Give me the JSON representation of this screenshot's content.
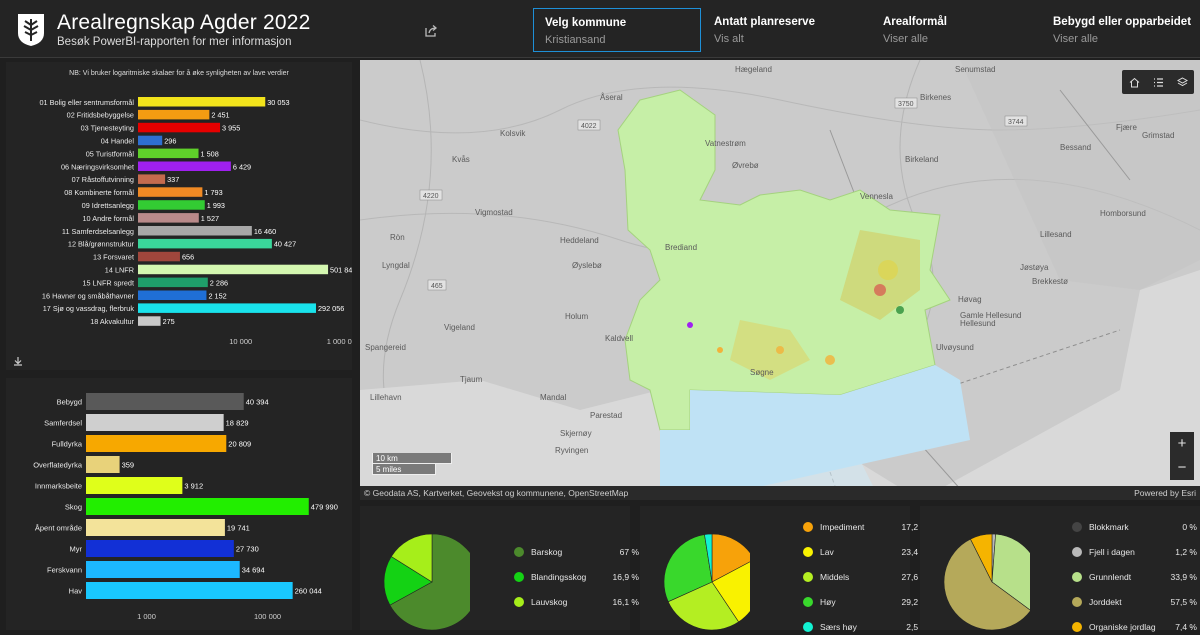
{
  "header": {
    "title": "Arealregnskap Agder 2022",
    "subtitle": "Besøk PowerBI-rapporten for mer informasjon",
    "filters": [
      {
        "label": "Velg kommune",
        "value": "Kristiansand"
      },
      {
        "label": "Antatt planreserve",
        "value": "Vis alt"
      },
      {
        "label": "Arealformål",
        "value": "Viser alle"
      },
      {
        "label": "Bebygd eller opparbeidet",
        "value": "Viser alle"
      }
    ]
  },
  "plan_chart": {
    "note": "NB: Vi bruker logaritmiske skalaer for å øke synligheten av lave verdier"
  },
  "chart_data": [
    {
      "type": "bar",
      "orientation": "horizontal",
      "scale": "log",
      "categories": [
        "01 Bolig eller sentrumsformål",
        "02 Fritidsbebyggelse",
        "03 Tjenesteyting",
        "04 Handel",
        "05 Turistformål",
        "06 Næringsvirksomhet",
        "07 Råstoffutvinning",
        "08 Kombinerte formål",
        "09 Idrettsanlegg",
        "10 Andre formål",
        "11 Samferdselsanlegg",
        "12 Blå/grønnstruktur",
        "13 Forsvaret",
        "14 LNFR",
        "15 LNFR spredt",
        "16 Havner og småbåthavner",
        "17 Sjø og vassdrag, flerbruk",
        "18 Akvakultur"
      ],
      "values": [
        30053,
        2451,
        3955,
        296,
        1508,
        6429,
        337,
        1793,
        1993,
        1527,
        16460,
        40427,
        656,
        501846,
        2286,
        2152,
        292056,
        275
      ],
      "value_labels": [
        "30 053",
        "2 451",
        "3 955",
        "296",
        "1 508",
        "6 429",
        "337",
        "1 793",
        "1 993",
        "1 527",
        "16 460",
        "40 427",
        "656",
        "501 846",
        "2 286",
        "2 152",
        "292 056",
        "275"
      ],
      "colors": [
        "#f2e31b",
        "#f39c12",
        "#e60000",
        "#2e6fd1",
        "#5fd12a",
        "#a020f0",
        "#c46b4e",
        "#f08a24",
        "#33cc33",
        "#b98a8a",
        "#a8a8a8",
        "#3ad69b",
        "#a0463c",
        "#d4f7b0",
        "#1f9e6a",
        "#1f6fd6",
        "#19e3ec",
        "#c8c8c8"
      ],
      "ticks": [
        "10 000",
        "1 000 000"
      ]
    },
    {
      "type": "bar",
      "orientation": "horizontal",
      "scale": "log",
      "categories": [
        "Bebygd",
        "Samferdsel",
        "Fulldyrka",
        "Overflatedyrka",
        "Innmarksbeite",
        "Skog",
        "Åpent område",
        "Myr",
        "Ferskvann",
        "Hav"
      ],
      "values": [
        40394,
        18829,
        20809,
        359,
        3912,
        479990,
        19741,
        27730,
        34694,
        260044
      ],
      "value_labels": [
        "40 394",
        "18 829",
        "20 809",
        "359",
        "3 912",
        "479 990",
        "19 741",
        "27 730",
        "34 694",
        "260 044"
      ],
      "colors": [
        "#595959",
        "#cfcfcf",
        "#f7a800",
        "#e8d27a",
        "#dfff1a",
        "#22ee00",
        "#f3e39a",
        "#1230d6",
        "#1cb8ff",
        "#19c8ff"
      ],
      "ticks": [
        "1 000",
        "100 000"
      ]
    },
    {
      "type": "pie",
      "labels": [
        "Barskog",
        "Blandingsskog",
        "Lauvskog"
      ],
      "values": [
        67,
        16.9,
        16.1
      ],
      "value_labels": [
        "67 %",
        "16,9 %",
        "16,1 %"
      ],
      "colors": [
        "#4c8a2c",
        "#14d214",
        "#a6ee1a"
      ]
    },
    {
      "type": "pie",
      "labels": [
        "Impediment",
        "Lav",
        "Middels",
        "Høy",
        "Særs høy"
      ],
      "values": [
        17.2,
        23.4,
        27.6,
        29.2,
        2.5
      ],
      "value_labels": [
        "17,2 %",
        "23,4 %",
        "27,6 %",
        "29,2 %",
        "2,5 %"
      ],
      "colors": [
        "#f7a20a",
        "#f9f200",
        "#b4ee22",
        "#39d82c",
        "#12f2d2"
      ]
    },
    {
      "type": "pie",
      "labels": [
        "Blokkmark",
        "Fjell i dagen",
        "Grunnlendt",
        "Jorddekt",
        "Organiske jordlag"
      ],
      "values": [
        0,
        1.2,
        33.9,
        57.5,
        7.4
      ],
      "value_labels": [
        "0 %",
        "1,2 %",
        "33,9 %",
        "57,5 %",
        "7,4 %"
      ],
      "colors": [
        "#444444",
        "#b9b9b9",
        "#b7e08a",
        "#b5a95a",
        "#f5b400"
      ]
    }
  ],
  "map": {
    "places": [
      "Hægeland",
      "Senumstad",
      "Vatnestrøm",
      "Kvås",
      "Kolsvik",
      "Øvrebø",
      "Vennesla",
      "Birkeland",
      "Lyngdal",
      "Vigmostad",
      "Ròn",
      "Heddeland",
      "Brediand",
      "Øyslebø",
      "Lillesand",
      "Homborsund",
      "Grimstad",
      "Fjære",
      "Vigeland",
      "Holum",
      "Kaldvell",
      "Søgne",
      "Hellesund",
      "Ulvøysund",
      "Mandal",
      "Parestad",
      "Skjernøy",
      "Ryvingen",
      "Tjaum",
      "Lillehavn",
      "Spangereid",
      "Åseral",
      "Birkenes",
      "Bessand",
      "Jøstøya",
      "Brekkestø",
      "Høvag",
      "Gamle Hellesund"
    ],
    "roads": [
      "4022",
      "3750",
      "3744",
      "4220",
      "465"
    ],
    "scale_km": "10 km",
    "scale_mi": "5 miles",
    "attribution": "© Geodata AS, Kartverket, Geovekst og kommunene, OpenStreetMap",
    "powered_by": "Powered by Esri",
    "zoom_in": "+",
    "zoom_out": "−"
  }
}
